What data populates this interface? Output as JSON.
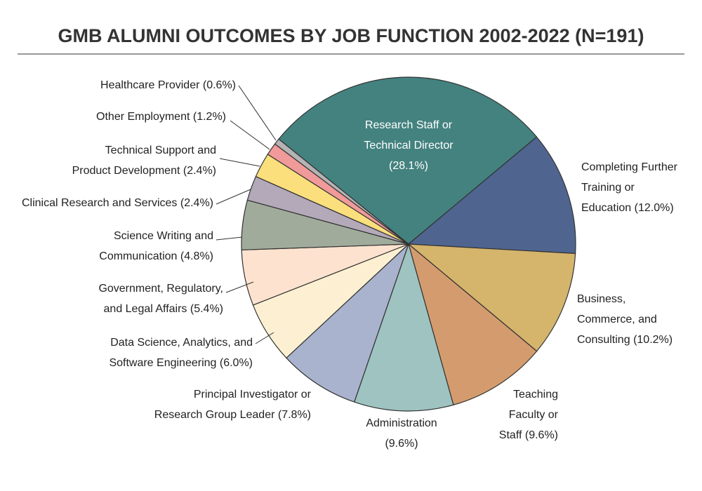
{
  "chart_data": {
    "type": "pie",
    "title": "GMB ALUMNI OUTCOMES BY JOB FUNCTION 2002-2022 (N=191)",
    "categories": [
      "Research Staff or Technical Director",
      "Completing Further Training or Education",
      "Business, Commerce, and Consulting",
      "Teaching Faculty or Staff",
      "Administration",
      "Principal Investigator or Research Group Leader",
      "Data Science, Analytics, and Software Engineering",
      "Government, Regulatory, and Legal Affairs",
      "Science Writing and Communication",
      "Clinical Research and Services",
      "Technical Support and Product Development",
      "Other Employment",
      "Healthcare Provider"
    ],
    "values": [
      28.1,
      12.0,
      10.2,
      9.6,
      9.6,
      7.8,
      6.0,
      5.4,
      4.8,
      2.4,
      2.4,
      1.2,
      0.6
    ],
    "value_labels": [
      "(28.1%)",
      "(12.0%)",
      "(10.2%)",
      "(9.6%)",
      "(9.6%)",
      "(7.8%)",
      "(6.0%)",
      "(5.4%)",
      "(4.8%)",
      "(2.4%)",
      "(2.4%)",
      "(1.2%)",
      "(0.6%)"
    ],
    "colors": [
      "#43827f",
      "#4f6590",
      "#d5b46c",
      "#d49c6e",
      "#9ec3c1",
      "#a9b3cd",
      "#fdf0d2",
      "#fde3cf",
      "#a1ab9b",
      "#b3a9b9",
      "#fbdf7c",
      "#f19a9a",
      "#b4b4b4"
    ]
  }
}
